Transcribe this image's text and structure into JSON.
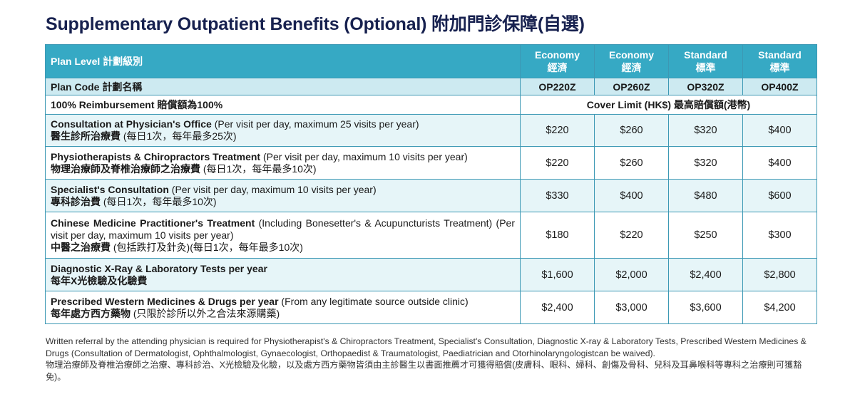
{
  "title": "Supplementary Outpatient Benefits (Optional) 附加門診保障(自選)",
  "table": {
    "header_label": "Plan Level 計劃級別",
    "plans": [
      {
        "level_en": "Economy",
        "level_zh": "經濟",
        "code": "OP220Z"
      },
      {
        "level_en": "Economy",
        "level_zh": "經濟",
        "code": "OP260Z"
      },
      {
        "level_en": "Standard",
        "level_zh": "標準",
        "code": "OP320Z"
      },
      {
        "level_en": "Standard",
        "level_zh": "標準",
        "code": "OP400Z"
      }
    ],
    "code_label": "Plan Code 計劃名稱",
    "reimbursement_label": "100% Reimbursement 賠償額為100%",
    "cover_limit_label": "Cover Limit (HK$) 最高賠償額(港幣)",
    "rows": [
      {
        "name_en": "Consultation at Physician's Office",
        "detail_en": " (Per visit per day, maximum 25 visits per year)",
        "name_zh": "醫生診所治療費",
        "detail_zh": " (每日1次，每年最多25次)",
        "values": [
          "$220",
          "$260",
          "$320",
          "$400"
        ]
      },
      {
        "name_en": "Physiotherapists & Chiropractors Treatment",
        "detail_en": " (Per visit per day, maximum 10 visits per year)",
        "name_zh": "物理治療師及脊椎治療師之治療費",
        "detail_zh": " (每日1次，每年最多10次)",
        "values": [
          "$220",
          "$260",
          "$320",
          "$400"
        ]
      },
      {
        "name_en": "Specialist's Consultation",
        "detail_en": " (Per visit per day, maximum 10 visits per year)",
        "name_zh": "專科診治費",
        "detail_zh": " (每日1次，每年最多10次)",
        "values": [
          "$330",
          "$400",
          "$480",
          "$600"
        ]
      },
      {
        "name_en": "Chinese Medicine Practitioner's Treatment",
        "detail_en": " (Including Bonesetter's & Acupuncturists Treatment) (Per visit per day, maximum 10 visits per year)",
        "name_zh": "中醫之治療費",
        "detail_zh": " (包括跌打及針灸)(每日1次，每年最多10次)",
        "values": [
          "$180",
          "$220",
          "$250",
          "$300"
        ]
      },
      {
        "name_en": "Diagnostic X-Ray & Laboratory Tests per year",
        "detail_en": "",
        "name_zh": "每年X光檢驗及化驗費",
        "detail_zh": "",
        "values": [
          "$1,600",
          "$2,000",
          "$2,400",
          "$2,800"
        ]
      },
      {
        "name_en": "Prescribed Western Medicines & Drugs per year",
        "detail_en": " (From any legitimate source outside clinic)",
        "name_zh": " 每年處方西方藥物",
        "detail_zh": " (只限於診所以外之合法來源購藥)",
        "values": [
          "$2,400",
          "$3,000",
          "$3,600",
          "$4,200"
        ]
      }
    ]
  },
  "footnote_en": "Written referral by the attending physician is required for Physiotherapist's & Chiropractors Treatment, Specialist's Consultation, Diagnostic X-ray & Laboratory Tests, Prescribed Western Medicines & Drugs (Consultation of Dermatologist, Ophthalmologist, Gynaecologist, Orthopaedist & Traumatologist, Paediatrician and Otorhinolaryngologistcan be waived).",
  "footnote_zh": "物理治療師及脊椎治療師之治療、專科診治、X光檢驗及化驗，以及處方西方藥物皆須由主診醫生以書面推薦才可獲得賠償(皮膚科、眼科、婦科、創傷及骨科、兒科及耳鼻喉科等專科之治療則可獲豁免)。"
}
